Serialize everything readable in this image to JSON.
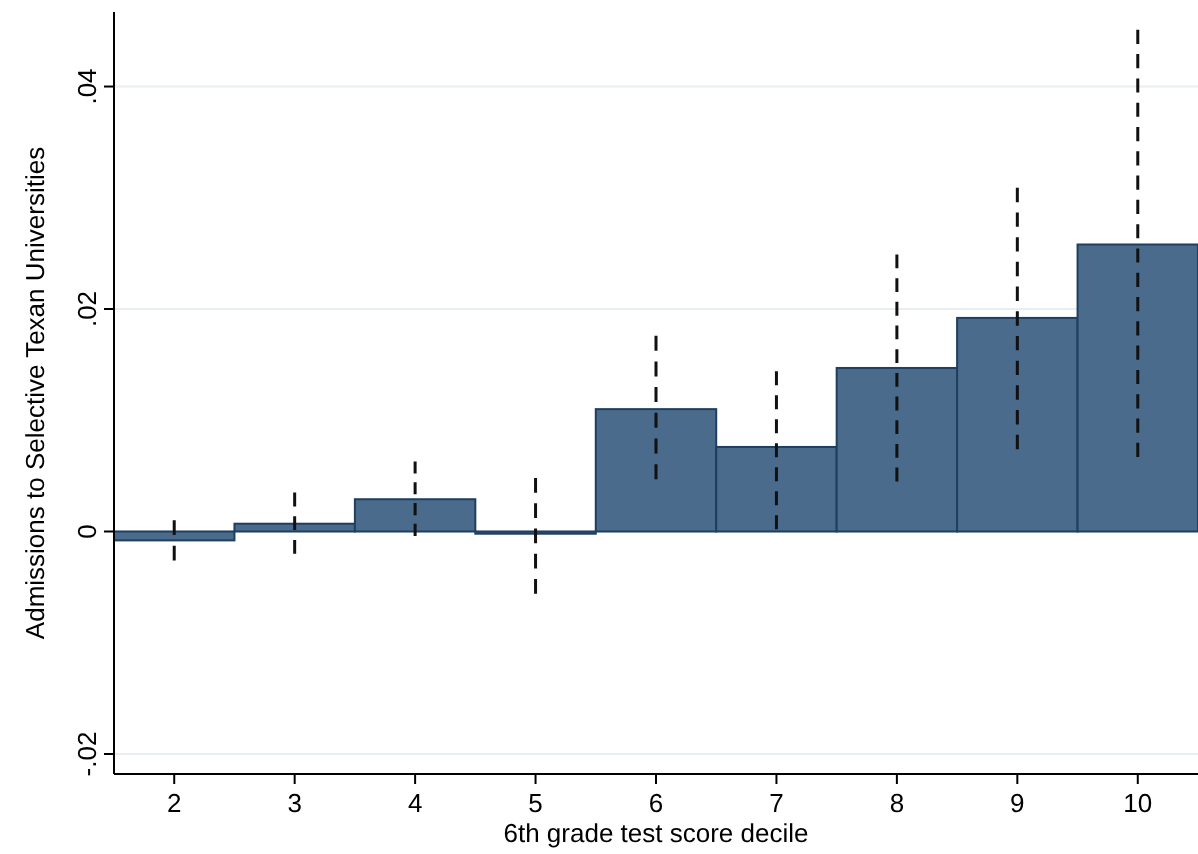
{
  "chart_data": {
    "type": "bar",
    "xlabel": "6th grade test score decile",
    "ylabel": "Admissions to Selective Texan Universities",
    "categories": [
      "2",
      "3",
      "4",
      "5",
      "6",
      "7",
      "8",
      "9",
      "10"
    ],
    "values": [
      -0.0008,
      0.0007,
      0.0029,
      -0.0002,
      0.011,
      0.0076,
      0.0147,
      0.0192,
      0.0258
    ],
    "errors": [
      [
        -0.0026,
        0.001
      ],
      [
        -0.002,
        0.0035
      ],
      [
        -0.0004,
        0.0063
      ],
      [
        -0.0056,
        0.0048
      ],
      [
        0.0047,
        0.0176
      ],
      [
        0.0002,
        0.0144
      ],
      [
        0.0045,
        0.0249
      ],
      [
        0.0074,
        0.0309
      ],
      [
        0.0067,
        0.0451
      ]
    ],
    "color": "#4a6b8c",
    "ylim": [
      -0.0218,
      0.0467
    ],
    "yticks": [
      {
        "value": -0.02,
        "label": "-.02"
      },
      {
        "value": 0,
        "label": "0"
      },
      {
        "value": 0.02,
        "label": ".02"
      },
      {
        "value": 0.04,
        "label": ".04"
      }
    ],
    "grid": "y"
  }
}
